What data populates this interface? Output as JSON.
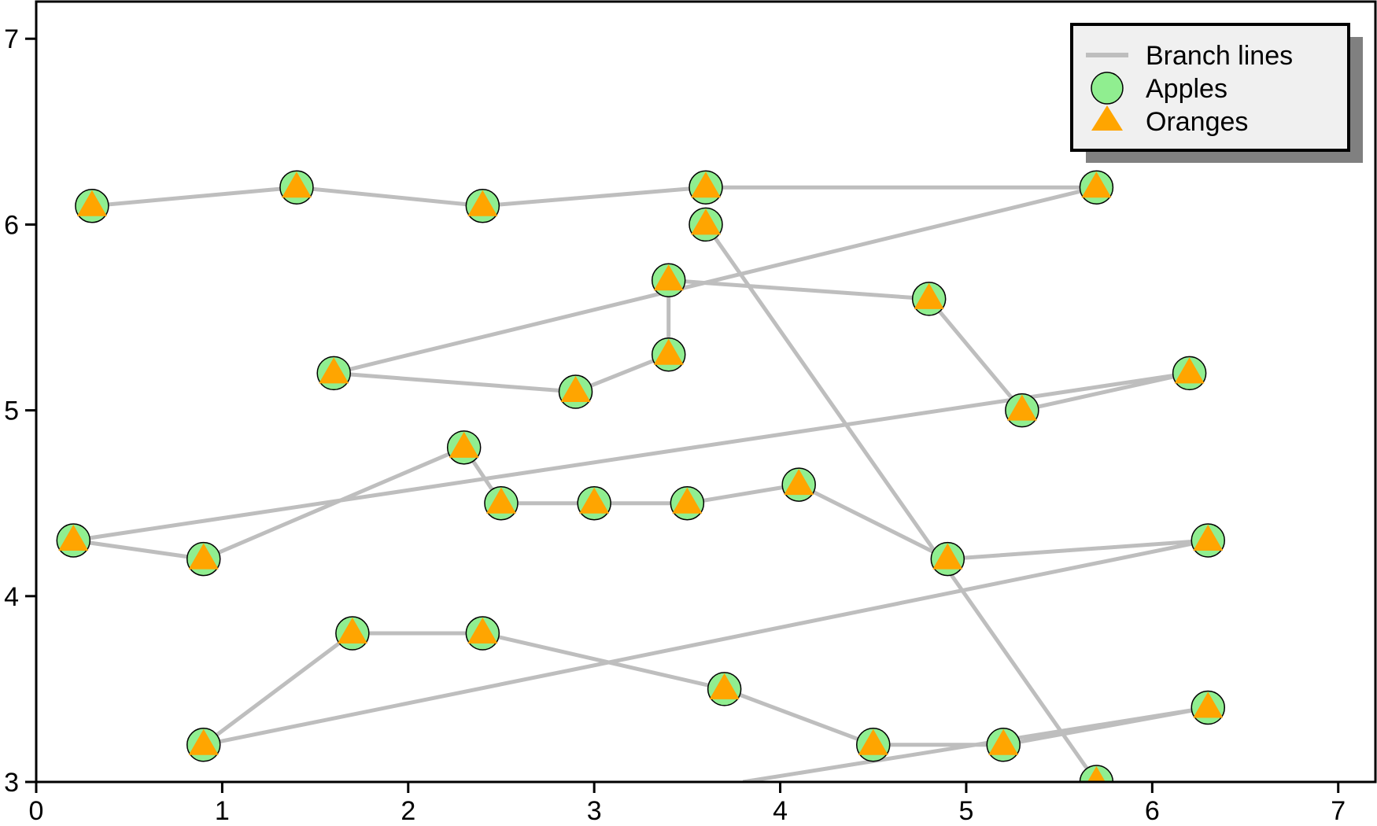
{
  "chart_data": {
    "type": "scatter",
    "title": "",
    "xlabel": "",
    "ylabel": "",
    "xlim": [
      0,
      7.2
    ],
    "ylim": [
      3,
      7.2
    ],
    "x_ticks": [
      "0",
      "1",
      "2",
      "3",
      "4",
      "5",
      "6",
      "7"
    ],
    "y_ticks": [
      "3",
      "4",
      "5",
      "6",
      "7"
    ],
    "grid": false,
    "legend": {
      "position": "top-right",
      "entries": [
        "Branch lines",
        "Apples",
        "Oranges"
      ]
    },
    "colors": {
      "line": "#bebebe",
      "apples": "#90ee90",
      "oranges": "#ffa500",
      "legend_bg": "#f0f0f0",
      "legend_shadow": "#808080"
    },
    "branches": [
      [
        [
          0.3,
          6.1
        ],
        [
          1.4,
          6.2
        ],
        [
          2.4,
          6.1
        ],
        [
          3.6,
          6.2
        ],
        [
          5.7,
          6.2
        ],
        [
          1.6,
          5.2
        ],
        [
          2.9,
          5.1
        ],
        [
          3.4,
          5.3
        ],
        [
          3.4,
          5.7
        ],
        [
          4.8,
          5.6
        ],
        [
          5.3,
          5.0
        ],
        [
          6.2,
          5.2
        ],
        [
          0.2,
          4.3
        ],
        [
          0.9,
          4.2
        ],
        [
          2.3,
          4.8
        ],
        [
          2.5,
          4.5
        ],
        [
          3.0,
          4.5
        ],
        [
          3.5,
          4.5
        ],
        [
          4.1,
          4.6
        ],
        [
          4.9,
          4.2
        ],
        [
          6.3,
          4.3
        ],
        [
          0.9,
          3.2
        ],
        [
          1.7,
          3.8
        ],
        [
          2.4,
          3.8
        ],
        [
          3.7,
          3.5
        ],
        [
          4.5,
          3.2
        ],
        [
          5.2,
          3.2
        ],
        [
          6.3,
          3.4
        ],
        [
          3.8,
          3.0
        ]
      ],
      [
        [
          3.6,
          6.0
        ],
        [
          5.7,
          3.0
        ]
      ]
    ],
    "series": [
      {
        "name": "Apples",
        "marker": "circle",
        "points": [
          [
            0.3,
            6.1
          ],
          [
            1.4,
            6.2
          ],
          [
            2.4,
            6.1
          ],
          [
            3.6,
            6.2
          ],
          [
            5.7,
            6.2
          ],
          [
            3.6,
            6.0
          ],
          [
            3.4,
            5.7
          ],
          [
            4.8,
            5.6
          ],
          [
            1.6,
            5.2
          ],
          [
            2.9,
            5.1
          ],
          [
            3.4,
            5.3
          ],
          [
            5.3,
            5.0
          ],
          [
            6.2,
            5.2
          ],
          [
            2.3,
            4.8
          ],
          [
            0.2,
            4.3
          ],
          [
            0.9,
            4.2
          ],
          [
            2.5,
            4.5
          ],
          [
            3.0,
            4.5
          ],
          [
            3.5,
            4.5
          ],
          [
            4.1,
            4.6
          ],
          [
            4.9,
            4.2
          ],
          [
            6.3,
            4.3
          ],
          [
            1.7,
            3.8
          ],
          [
            2.4,
            3.8
          ],
          [
            3.7,
            3.5
          ],
          [
            0.9,
            3.2
          ],
          [
            4.5,
            3.2
          ],
          [
            5.2,
            3.2
          ],
          [
            6.3,
            3.4
          ],
          [
            5.7,
            3.0
          ]
        ]
      },
      {
        "name": "Oranges",
        "marker": "triangle",
        "points": [
          [
            0.3,
            6.1
          ],
          [
            1.4,
            6.2
          ],
          [
            2.4,
            6.1
          ],
          [
            3.6,
            6.2
          ],
          [
            5.7,
            6.2
          ],
          [
            3.6,
            6.0
          ],
          [
            3.4,
            5.7
          ],
          [
            4.8,
            5.6
          ],
          [
            1.6,
            5.2
          ],
          [
            2.9,
            5.1
          ],
          [
            3.4,
            5.3
          ],
          [
            5.3,
            5.0
          ],
          [
            6.2,
            5.2
          ],
          [
            2.3,
            4.8
          ],
          [
            0.2,
            4.3
          ],
          [
            0.9,
            4.2
          ],
          [
            2.5,
            4.5
          ],
          [
            3.0,
            4.5
          ],
          [
            3.5,
            4.5
          ],
          [
            4.1,
            4.6
          ],
          [
            4.9,
            4.2
          ],
          [
            6.3,
            4.3
          ],
          [
            1.7,
            3.8
          ],
          [
            2.4,
            3.8
          ],
          [
            3.7,
            3.5
          ],
          [
            0.9,
            3.2
          ],
          [
            4.5,
            3.2
          ],
          [
            5.2,
            3.2
          ],
          [
            6.3,
            3.4
          ],
          [
            5.7,
            3.0
          ]
        ]
      }
    ]
  }
}
